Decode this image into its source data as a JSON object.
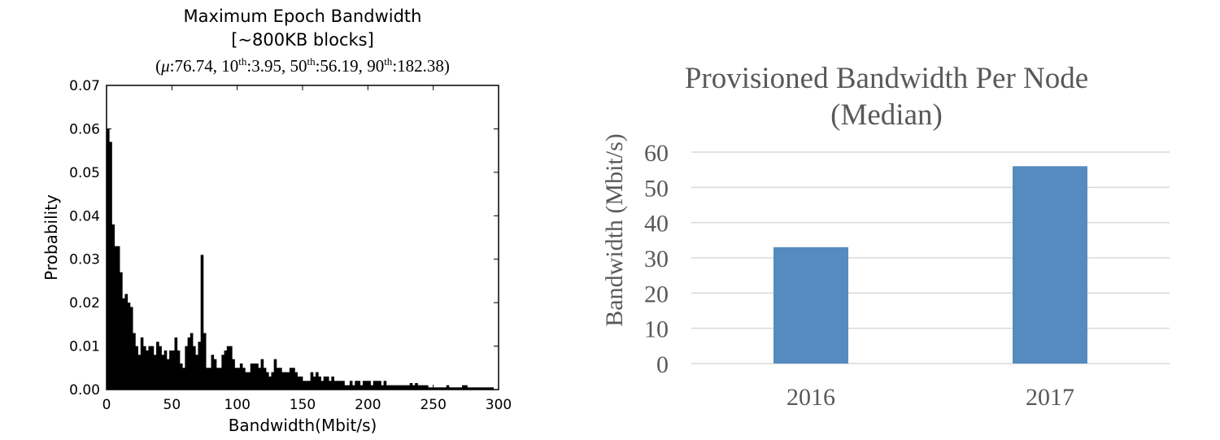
{
  "chart_data": [
    {
      "type": "bar",
      "title": "Maximum Epoch Bandwidth",
      "subtitle": "[~800KB blocks]",
      "stats_line": {
        "open": "(",
        "mu": "μ",
        "mean": ":76.74, ",
        "p10_num": "10",
        "p10_val": ":3.95, ",
        "p50_num": "50",
        "p50_val": ":56.19, ",
        "p90_num": "90",
        "p90_val": ":182.38)",
        "sup": "th"
      },
      "xlabel": "Bandwidth(Mbit/s)",
      "ylabel": "Probability",
      "xlim": [
        0,
        300
      ],
      "ylim": [
        0,
        0.07
      ],
      "x_ticks": [
        0,
        50,
        100,
        150,
        200,
        250,
        300
      ],
      "x_tick_labels": [
        "0",
        "50",
        "100",
        "150",
        "200",
        "250",
        "300"
      ],
      "y_ticks": [
        0,
        0.01,
        0.02,
        0.03,
        0.04,
        0.05,
        0.06,
        0.07
      ],
      "y_tick_labels": [
        "0.00",
        "0.01",
        "0.02",
        "0.03",
        "0.04",
        "0.05",
        "0.06",
        "0.07"
      ],
      "bin_width": 2,
      "bin_start": 0,
      "values": [
        0.06,
        0.057,
        0.038,
        0.033,
        0.033,
        0.027,
        0.021,
        0.022,
        0.02,
        0.019,
        0.013,
        0.01,
        0.008,
        0.012,
        0.01,
        0.009,
        0.01,
        0.01,
        0.008,
        0.011,
        0.01,
        0.008,
        0.009,
        0.007,
        0.009,
        0.009,
        0.012,
        0.009,
        0.006,
        0.005,
        0.01,
        0.012,
        0.013,
        0.01,
        0.008,
        0.011,
        0.031,
        0.013,
        0.005,
        0.005,
        0.008,
        0.007,
        0.005,
        0.005,
        0.008,
        0.009,
        0.01,
        0.01,
        0.007,
        0.005,
        0.005,
        0.006,
        0.005,
        0.004,
        0.004,
        0.006,
        0.006,
        0.006,
        0.005,
        0.007,
        0.005,
        0.004,
        0.003,
        0.004,
        0.007,
        0.005,
        0.005,
        0.004,
        0.004,
        0.004,
        0.005,
        0.005,
        0.004,
        0.003,
        0.003,
        0.002,
        0.002,
        0.002,
        0.004,
        0.003,
        0.004,
        0.003,
        0.002,
        0.003,
        0.003,
        0.002,
        0.003,
        0.002,
        0.002,
        0.002,
        0.002,
        0.001,
        0.001,
        0.002,
        0.001,
        0.002,
        0.002,
        0.001,
        0.002,
        0.002,
        0.002,
        0.001,
        0.002,
        0.002,
        0.002,
        0.001,
        0.002,
        0.001,
        0.001,
        0.001,
        0.001,
        0.001,
        0.001,
        0.001,
        0.001,
        0.001,
        0.0015,
        0.001,
        0.0015,
        0.001,
        0.001,
        0.001,
        0.001,
        0.0005,
        0.0005,
        0.0005,
        0.0005,
        0.0005,
        0.0005,
        0.0005,
        0.001,
        0.0005,
        0.0005,
        0.0005,
        0.0005,
        0.0005,
        0.001,
        0.001,
        0.0005,
        0.0005,
        0.0005,
        0.0005,
        0.0005,
        0.0005,
        0.0005,
        0.0005,
        0.0005,
        0.0005
      ],
      "colors": {
        "bar": "#000000",
        "axis": "#000000"
      },
      "grid": false
    },
    {
      "type": "bar",
      "title_line1": "Provisioned Bandwidth Per Node",
      "title_line2": "(Median)",
      "ylabel": "Bandwidth (Mbit/s)",
      "categories": [
        "2016",
        "2017"
      ],
      "values": [
        33,
        56
      ],
      "ylim": [
        0,
        60
      ],
      "y_ticks": [
        0,
        10,
        20,
        30,
        40,
        50,
        60
      ],
      "y_tick_labels": [
        "0",
        "10",
        "20",
        "30",
        "40",
        "50",
        "60"
      ],
      "colors": {
        "bar": "#558bbf",
        "grid": "#d9d9d9",
        "text": "#595959"
      },
      "grid": true
    }
  ]
}
